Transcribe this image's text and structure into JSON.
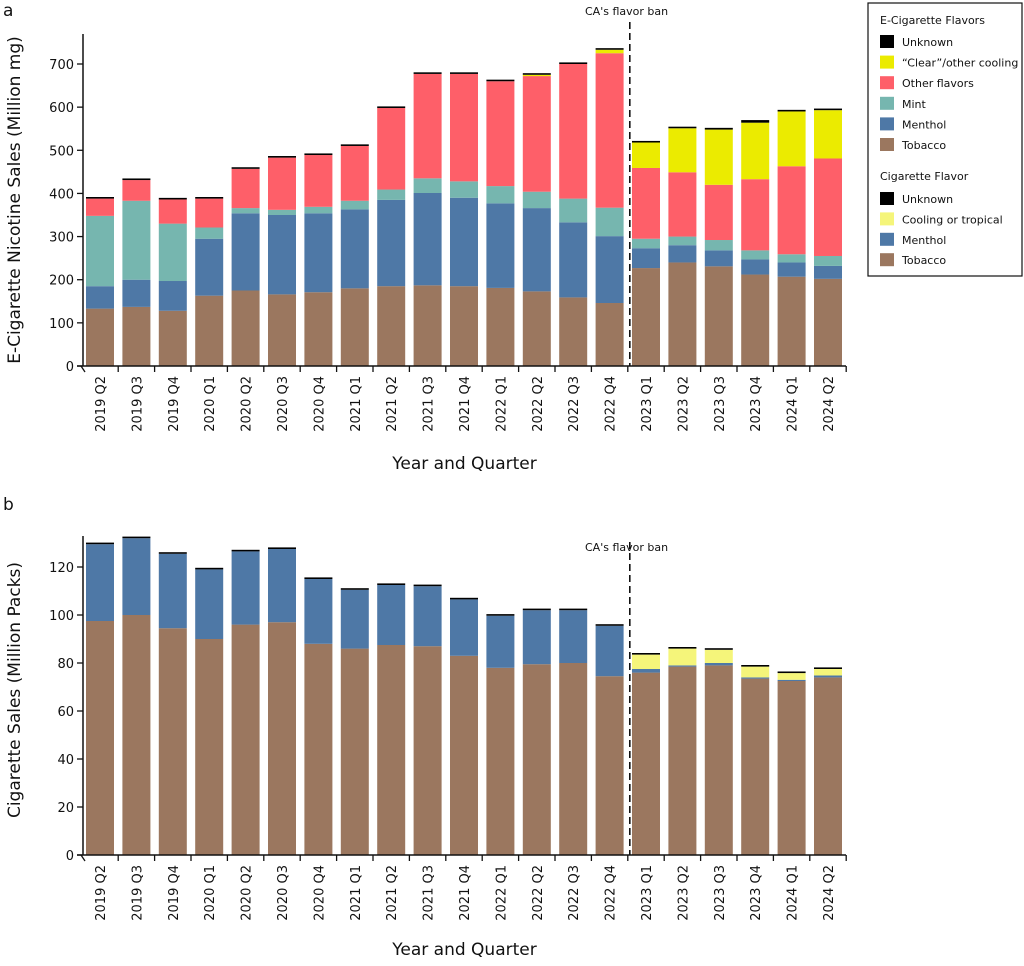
{
  "chart_data": [
    {
      "type": "bar",
      "stacked": true,
      "panel_label": "a",
      "xlabel": "Year and Quarter",
      "ylabel": "E-Cigarette Nicotine Sales (Million mg)",
      "ylim": [
        0,
        760
      ],
      "yticks": [
        0,
        100,
        200,
        300,
        400,
        500,
        600,
        700
      ],
      "grid": false,
      "annotation": {
        "text": "CA's flavor ban",
        "between": [
          "2022 Q4",
          "2023 Q1"
        ],
        "style": "dashed vertical line"
      },
      "categories": [
        "2019 Q2",
        "2019 Q3",
        "2019 Q4",
        "2020 Q1",
        "2020 Q2",
        "2020 Q3",
        "2020 Q4",
        "2021 Q1",
        "2021 Q2",
        "2021 Q3",
        "2021 Q4",
        "2022 Q1",
        "2022 Q2",
        "2022 Q3",
        "2022 Q4",
        "2023 Q1",
        "2023 Q2",
        "2023 Q3",
        "2023 Q4",
        "2024 Q1",
        "2024 Q2"
      ],
      "series": [
        {
          "name": "Tobacco",
          "color": "#9b775f",
          "values": [
            133,
            137,
            128,
            163,
            175,
            166,
            171,
            180,
            185,
            187,
            185,
            181,
            173,
            159,
            146,
            227,
            240,
            231,
            212,
            207,
            202
          ]
        },
        {
          "name": "Menthol",
          "color": "#4e78a6",
          "values": [
            52,
            63,
            69,
            132,
            179,
            184,
            183,
            183,
            200,
            214,
            205,
            196,
            193,
            174,
            155,
            46,
            40,
            37,
            35,
            33,
            30
          ]
        },
        {
          "name": "Mint",
          "color": "#76b6af",
          "values": [
            163,
            183,
            133,
            26,
            12,
            12,
            15,
            20,
            24,
            34,
            38,
            40,
            38,
            55,
            66,
            22,
            20,
            24,
            21,
            19,
            23
          ]
        },
        {
          "name": "Other flavors",
          "color": "#fe5f69",
          "values": [
            40,
            48,
            56,
            67,
            91,
            121,
            120,
            127,
            189,
            242,
            249,
            243,
            268,
            312,
            358,
            164,
            149,
            128,
            165,
            204,
            226
          ]
        },
        {
          "name": "“Clear”/other cooling",
          "color": "#ebeb00",
          "values": [
            0,
            0,
            0,
            0,
            0,
            0,
            0,
            0,
            0,
            0,
            0,
            0,
            3,
            0,
            8,
            59,
            102,
            128,
            131,
            127,
            112
          ]
        },
        {
          "name": "Unknown",
          "color": "#000000",
          "values": [
            2,
            2,
            2,
            2,
            2,
            2,
            2,
            2,
            2,
            2,
            2,
            2,
            2,
            2,
            2,
            2,
            2,
            4,
            6,
            2,
            2
          ]
        }
      ]
    },
    {
      "type": "bar",
      "stacked": true,
      "panel_label": "b",
      "xlabel": "Year and Quarter",
      "ylabel": "Cigarette Sales (Million Packs)",
      "ylim": [
        0,
        138
      ],
      "yticks": [
        0,
        20,
        40,
        60,
        80,
        100,
        120
      ],
      "grid": false,
      "annotation": {
        "text": "CA's flavor ban",
        "between": [
          "2022 Q4",
          "2023 Q1"
        ],
        "style": "dashed vertical line"
      },
      "categories": [
        "2019 Q2",
        "2019 Q3",
        "2019 Q4",
        "2020 Q1",
        "2020 Q2",
        "2020 Q3",
        "2020 Q4",
        "2021 Q1",
        "2021 Q2",
        "2021 Q3",
        "2021 Q4",
        "2022 Q1",
        "2022 Q2",
        "2022 Q3",
        "2022 Q4",
        "2023 Q1",
        "2023 Q2",
        "2023 Q3",
        "2023 Q4",
        "2024 Q1",
        "2024 Q2"
      ],
      "series": [
        {
          "name": "Tobacco",
          "color": "#9b775f",
          "values": [
            97.5,
            100,
            94.5,
            90,
            96,
            97,
            88,
            86,
            87.5,
            87,
            83,
            78,
            79.5,
            80,
            74.5,
            76,
            78.5,
            79,
            73.5,
            72.5,
            74
          ]
        },
        {
          "name": "Menthol",
          "color": "#4e78a6",
          "values": [
            32,
            32,
            31,
            29,
            30.5,
            30.5,
            27,
            24.5,
            25,
            25,
            23.5,
            21.7,
            22.5,
            22,
            21,
            1.5,
            0.5,
            1,
            0.5,
            0.5,
            0.8
          ]
        },
        {
          "name": "Cooling or tropical",
          "color": "#f5f57a",
          "values": [
            0,
            0,
            0,
            0,
            0,
            0,
            0,
            0,
            0,
            0,
            0,
            0,
            0,
            0,
            0,
            6,
            7,
            5.5,
            4.5,
            2.8,
            2.7
          ]
        },
        {
          "name": "Unknown",
          "color": "#000000",
          "values": [
            0.4,
            0.4,
            0.4,
            0.4,
            0.4,
            0.4,
            0.4,
            0.4,
            0.4,
            0.4,
            0.4,
            0.4,
            0.4,
            0.4,
            0.4,
            0.4,
            0.4,
            0.4,
            0.4,
            0.4,
            0.4
          ]
        }
      ]
    }
  ],
  "legend": {
    "placement": "top-right",
    "ecig_title": "E-Cigarette Flavors",
    "ecig_items": [
      {
        "label": "Unknown",
        "color": "#000000"
      },
      {
        "label": "“Clear”/other cooling",
        "color": "#ebeb00"
      },
      {
        "label": "Other flavors",
        "color": "#fe5f69"
      },
      {
        "label": "Mint",
        "color": "#76b6af"
      },
      {
        "label": "Menthol",
        "color": "#4e78a6"
      },
      {
        "label": "Tobacco",
        "color": "#9b775f"
      }
    ],
    "cig_title": "Cigarette Flavor",
    "cig_items": [
      {
        "label": "Unknown",
        "color": "#000000"
      },
      {
        "label": "Cooling or tropical",
        "color": "#f5f57a"
      },
      {
        "label": "Menthol",
        "color": "#4e78a6"
      },
      {
        "label": "Tobacco",
        "color": "#9b775f"
      }
    ]
  }
}
